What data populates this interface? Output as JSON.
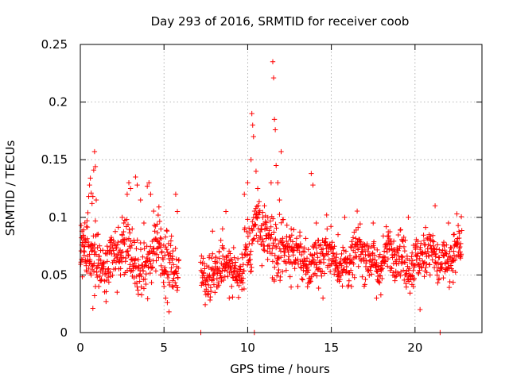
{
  "chart_data": {
    "type": "scatter",
    "title": "Day 293 of 2016, SRMTID for receiver coob",
    "xlabel": "GPS time / hours",
    "ylabel": "SRMTID / TECUs",
    "xlim": [
      0,
      24
    ],
    "ylim": [
      0,
      0.25
    ],
    "x_ticks": [
      0,
      5,
      10,
      15,
      20
    ],
    "x_tick_labels": [
      "0",
      "5",
      "10",
      "15",
      "20"
    ],
    "y_ticks": [
      0,
      0.05,
      0.1,
      0.15,
      0.2,
      0.25
    ],
    "y_tick_labels": [
      "0",
      "0.05",
      "0.1",
      "0.15",
      "0.2",
      "0.25"
    ],
    "grid": true,
    "marker": "+",
    "color": "#ff0000",
    "series": [
      {
        "name": "SRMTID",
        "segments": [
          {
            "x_start": 0.0,
            "x_end": 5.9,
            "baseline": 0.065,
            "spread": 0.025
          },
          {
            "x_start": 7.2,
            "x_end": 9.8,
            "baseline": 0.055,
            "spread": 0.02
          },
          {
            "x_start": 9.8,
            "x_end": 12.2,
            "baseline": 0.08,
            "spread": 0.03
          },
          {
            "x_start": 12.2,
            "x_end": 22.8,
            "baseline": 0.065,
            "spread": 0.022
          }
        ],
        "points": [
          [
            0.05,
            0.093
          ],
          [
            0.1,
            0.088
          ],
          [
            0.15,
            0.082
          ],
          [
            0.2,
            0.075
          ],
          [
            0.25,
            0.07
          ],
          [
            0.3,
            0.063
          ],
          [
            0.35,
            0.058
          ],
          [
            0.4,
            0.097
          ],
          [
            0.45,
            0.104
          ],
          [
            0.5,
            0.118
          ],
          [
            0.55,
            0.128
          ],
          [
            0.6,
            0.134
          ],
          [
            0.65,
            0.121
          ],
          [
            0.7,
            0.112
          ],
          [
            0.75,
            0.118
          ],
          [
            0.8,
            0.141
          ],
          [
            0.85,
            0.157
          ],
          [
            0.9,
            0.144
          ],
          [
            0.95,
            0.115
          ],
          [
            0.55,
            0.06
          ],
          [
            0.65,
            0.05
          ],
          [
            0.75,
            0.021
          ],
          [
            0.85,
            0.032
          ],
          [
            1.0,
            0.085
          ],
          [
            1.1,
            0.04
          ],
          [
            1.2,
            0.045
          ],
          [
            1.3,
            0.055
          ],
          [
            1.4,
            0.06
          ],
          [
            1.6,
            0.075
          ],
          [
            1.8,
            0.08
          ],
          [
            2.0,
            0.055
          ],
          [
            2.2,
            0.035
          ],
          [
            2.4,
            0.05
          ],
          [
            2.5,
            0.1
          ],
          [
            2.6,
            0.095
          ],
          [
            2.8,
            0.12
          ],
          [
            2.9,
            0.13
          ],
          [
            3.0,
            0.125
          ],
          [
            3.1,
            0.09
          ],
          [
            3.2,
            0.08
          ],
          [
            3.3,
            0.135
          ],
          [
            3.4,
            0.128
          ],
          [
            3.6,
            0.115
          ],
          [
            3.8,
            0.095
          ],
          [
            4.0,
            0.127
          ],
          [
            4.1,
            0.13
          ],
          [
            4.2,
            0.12
          ],
          [
            4.4,
            0.07
          ],
          [
            4.6,
            0.08
          ],
          [
            4.8,
            0.05
          ],
          [
            5.0,
            0.04
          ],
          [
            5.1,
            0.03
          ],
          [
            5.2,
            0.026
          ],
          [
            5.3,
            0.018
          ],
          [
            5.5,
            0.04
          ],
          [
            5.7,
            0.12
          ],
          [
            5.8,
            0.105
          ],
          [
            7.2,
            0.0
          ],
          [
            7.3,
            0.06
          ],
          [
            7.5,
            0.045
          ],
          [
            7.7,
            0.065
          ],
          [
            7.9,
            0.088
          ],
          [
            8.1,
            0.055
          ],
          [
            8.3,
            0.07
          ],
          [
            8.5,
            0.09
          ],
          [
            8.7,
            0.105
          ],
          [
            8.9,
            0.03
          ],
          [
            9.2,
            0.065
          ],
          [
            9.5,
            0.055
          ],
          [
            9.8,
            0.12
          ],
          [
            10.0,
            0.13
          ],
          [
            10.2,
            0.15
          ],
          [
            10.25,
            0.19
          ],
          [
            10.3,
            0.18
          ],
          [
            10.35,
            0.17
          ],
          [
            10.4,
            0.0
          ],
          [
            10.5,
            0.14
          ],
          [
            10.6,
            0.125
          ],
          [
            10.8,
            0.09
          ],
          [
            11.0,
            0.11
          ],
          [
            11.2,
            0.075
          ],
          [
            11.4,
            0.13
          ],
          [
            11.5,
            0.235
          ],
          [
            11.55,
            0.221
          ],
          [
            11.6,
            0.185
          ],
          [
            11.65,
            0.176
          ],
          [
            11.7,
            0.145
          ],
          [
            11.8,
            0.13
          ],
          [
            11.9,
            0.115
          ],
          [
            12.0,
            0.157
          ],
          [
            12.1,
            0.098
          ],
          [
            12.3,
            0.06
          ],
          [
            12.6,
            0.09
          ],
          [
            13.0,
            0.04
          ],
          [
            13.4,
            0.07
          ],
          [
            13.8,
            0.138
          ],
          [
            13.9,
            0.128
          ],
          [
            14.1,
            0.095
          ],
          [
            14.5,
            0.03
          ],
          [
            15.0,
            0.06
          ],
          [
            15.4,
            0.085
          ],
          [
            15.8,
            0.1
          ],
          [
            16.2,
            0.04
          ],
          [
            16.6,
            0.072
          ],
          [
            17.0,
            0.075
          ],
          [
            17.5,
            0.095
          ],
          [
            17.7,
            0.03
          ],
          [
            18.0,
            0.055
          ],
          [
            18.4,
            0.08
          ],
          [
            18.8,
            0.045
          ],
          [
            19.2,
            0.06
          ],
          [
            19.6,
            0.1
          ],
          [
            19.9,
            0.04
          ],
          [
            20.3,
            0.02
          ],
          [
            20.6,
            0.07
          ],
          [
            20.9,
            0.05
          ],
          [
            21.2,
            0.11
          ],
          [
            21.5,
            0.0
          ],
          [
            21.8,
            0.06
          ],
          [
            22.0,
            0.095
          ],
          [
            22.3,
            0.085
          ],
          [
            22.5,
            0.103
          ],
          [
            22.7,
            0.07
          ]
        ]
      }
    ]
  }
}
